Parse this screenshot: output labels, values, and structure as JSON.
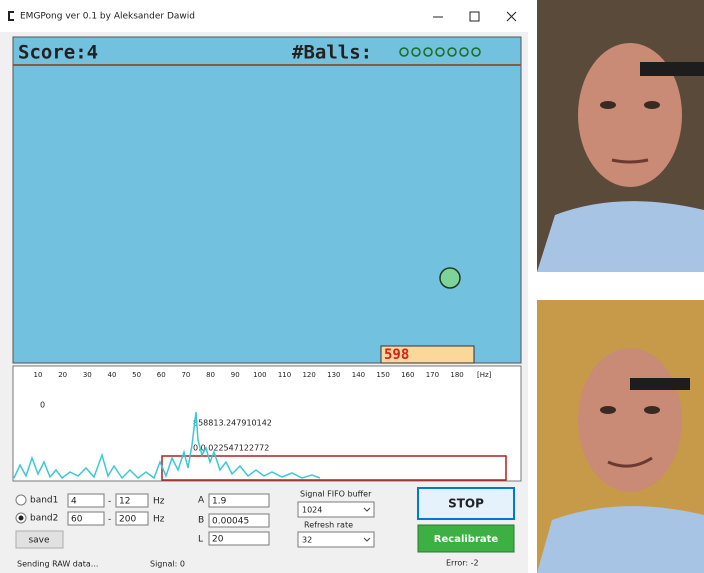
{
  "window": {
    "title": "EMGPong ver 0.1 by Aleksander Dawid"
  },
  "game": {
    "score": "Score:4",
    "balls_label": "#Balls:",
    "paddle_value": "598"
  },
  "spectrum": {
    "axis_labels": [
      "10",
      "20",
      "30",
      "40",
      "50",
      "60",
      "70",
      "80",
      "90",
      "100",
      "110",
      "120",
      "130",
      "140",
      "150",
      "160",
      "170",
      "180"
    ],
    "unit": "[Hz]",
    "zero_label": "0",
    "peak_label": "858813.247910142",
    "band_label": "0.0.022547122772"
  },
  "controls": {
    "band1": {
      "label": "band1",
      "from": "4",
      "to": "12",
      "unit": "Hz"
    },
    "band2": {
      "label": "band2",
      "from": "60",
      "to": "200",
      "unit": "Hz"
    },
    "dash": "-",
    "save": "save",
    "A": {
      "label": "A",
      "value": "1.9"
    },
    "B": {
      "label": "B",
      "value": "0.00045"
    },
    "L": {
      "label": "L",
      "value": "20"
    },
    "fifo": {
      "label": "Signal FIFO buffer",
      "value": "1024"
    },
    "refresh": {
      "label": "Refresh rate",
      "value": "32"
    },
    "stop": "STOP",
    "recalibrate": "Recalibrate"
  },
  "status": {
    "sending": "Sending RAW data...",
    "signal": "Signal: 0",
    "error": "Error: -2"
  }
}
